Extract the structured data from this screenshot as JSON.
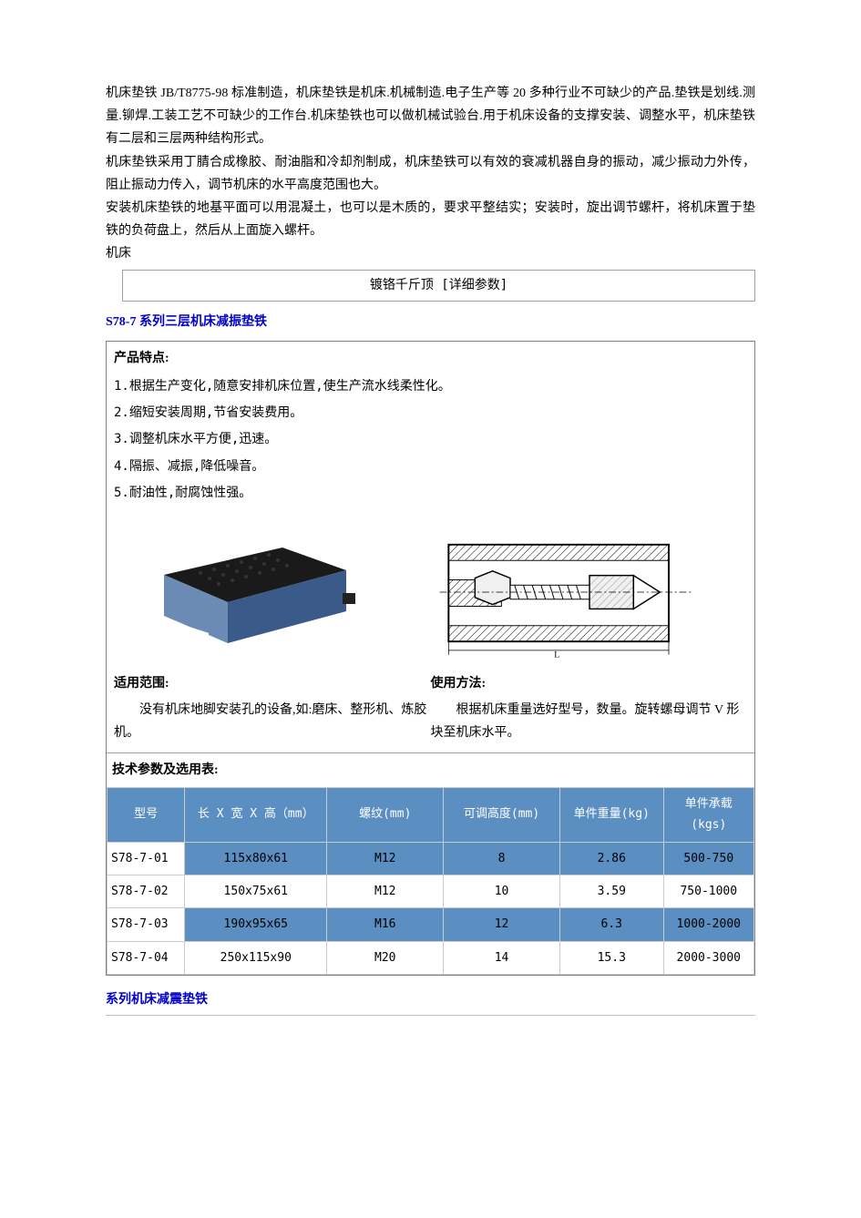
{
  "intro": {
    "p1": "机床垫铁 JB/T8775-98 标准制造，机床垫铁是机床.机械制造.电子生产等 20 多种行业不可缺少的产品.垫铁是划线.测量.铆焊.工装工艺不可缺少的工作台.机床垫铁也可以做机械试验台.用于机床设备的支撑安装、调整水平，机床垫铁有二层和三层两种结构形式。",
    "p2": "机床垫铁采用丁腈合成橡胶、耐油脂和冷却剂制成，机床垫铁可以有效的衰减机器自身的振动，减少振动力外传，阻止振动力传入，调节机床的水平高度范围也大。",
    "p3": "安装机床垫铁的地基平面可以用混凝土，也可以是木质的，要求平整结实；安装时，旋出调节螺杆，将机床置于垫铁的负荷盘上，然后从上面旋入螺杆。",
    "p4": "机床",
    "subhead": "镀铬千斤顶  [详细参数]"
  },
  "section_title": "S78-7 系列三层机床减振垫铁",
  "features": {
    "title": "产品特点:",
    "items": [
      "1.根据生产变化,随意安排机床位置,使生产流水线柔性化。",
      "2.缩短安装周期,节省安装费用。",
      "3.调整机床水平方便,迅速。",
      "4.隔振、减振,降低噪音。",
      "5.耐油性,耐腐蚀性强。"
    ]
  },
  "range": {
    "left_title": "适用范围:",
    "left_body": "没有机床地脚安装孔的设备,如:磨床、整形机、炼胶机。",
    "right_title": "使用方法:",
    "right_body": "根据机床重量选好型号，数量。旋转螺母调节 V 形块至机床水平。"
  },
  "param_title": "技术参数及选用表:",
  "table": {
    "columns": [
      "型号",
      "长 X 宽 X 高（mm）",
      "螺纹(mm)",
      "可调高度(mm)",
      "单件重量(kg)",
      "单件承载(kgs)"
    ],
    "col_widths": [
      "12%",
      "22%",
      "18%",
      "18%",
      "16%",
      "14%"
    ],
    "header_bg": "#5b8ec1",
    "header_color": "#ffffff",
    "row_stripe_bg": "#5b8ec1",
    "rows": [
      [
        "S78-7-01",
        "115x80x61",
        "M12",
        "8",
        "2.86",
        "500-750"
      ],
      [
        "S78-7-02",
        "150x75x61",
        "M12",
        "10",
        "3.59",
        "750-1000"
      ],
      [
        "S78-7-03",
        "190x95x65",
        "M16",
        "12",
        "6.3",
        "1000-2000"
      ],
      [
        "S78-7-04",
        "250x115x90",
        "M20",
        "14",
        "15.3",
        "2000-3000"
      ]
    ]
  },
  "bottom_blue": "系列机床减震垫铁",
  "product_photo": {
    "top_color": "#1a1a1a",
    "side_color": "#3a5a8a",
    "front_color": "#6b8bb5",
    "label_color": "#ffffff"
  },
  "diagram": {
    "stroke": "#000000",
    "hatch": "#000000",
    "fill_light": "#f0f0f0"
  }
}
